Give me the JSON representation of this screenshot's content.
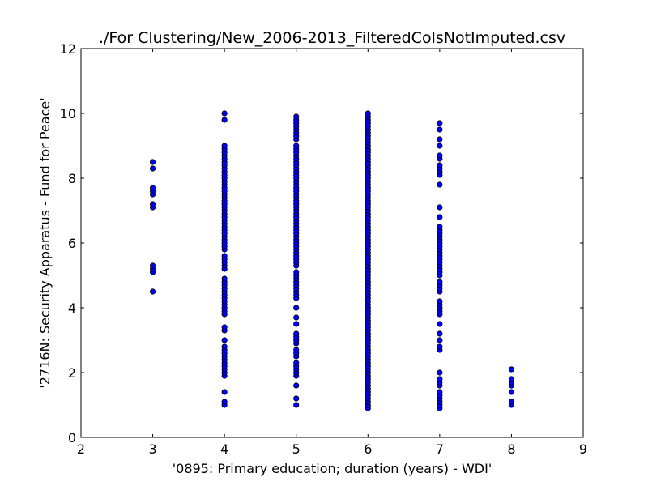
{
  "chart_data": {
    "type": "scatter",
    "title": "./For Clustering/New_2006-2013_FilteredColsNotImputed.csv",
    "xlabel": "'0895: Primary education; duration  (years) - WDI'",
    "ylabel": "'2716N: Security Apparatus - Fund for Peace'",
    "xlim": [
      2,
      9
    ],
    "ylim": [
      0,
      12
    ],
    "xticks": [
      "2",
      "3",
      "4",
      "5",
      "6",
      "7",
      "8",
      "9"
    ],
    "yticks": [
      "0",
      "2",
      "4",
      "6",
      "8",
      "10",
      "12"
    ],
    "marker_color": "#0000ff",
    "marker_edge_color": "#000000",
    "grid": false,
    "series": [
      {
        "name": "x=3",
        "x": 3,
        "y": [
          4.5,
          5.1,
          5.2,
          5.3,
          7.1,
          7.2,
          7.5,
          7.6,
          7.7,
          8.3,
          8.5
        ]
      },
      {
        "name": "x=4",
        "x": 4,
        "y": [
          1.0,
          1.1,
          1.4,
          1.9,
          2.0,
          2.1,
          2.2,
          2.3,
          2.4,
          2.5,
          2.6,
          2.7,
          2.8,
          3.0,
          3.3,
          3.4,
          3.8,
          3.9,
          4.0,
          4.1,
          4.2,
          4.3,
          4.4,
          4.5,
          4.6,
          4.7,
          4.8,
          4.9,
          5.2,
          5.3,
          5.4,
          5.5,
          5.6,
          5.8,
          5.9,
          6.0,
          6.1,
          6.2,
          6.3,
          6.4,
          6.5,
          6.6,
          6.7,
          6.8,
          6.9,
          7.0,
          7.1,
          7.2,
          7.3,
          7.4,
          7.5,
          7.6,
          7.7,
          7.8,
          7.9,
          8.0,
          8.1,
          8.2,
          8.3,
          8.4,
          8.5,
          8.6,
          8.7,
          8.8,
          8.9,
          9.0,
          9.8,
          10.0
        ]
      },
      {
        "name": "x=5",
        "x": 5,
        "y": [
          1.0,
          1.2,
          1.6,
          1.9,
          2.0,
          2.1,
          2.2,
          2.3,
          2.5,
          2.6,
          2.7,
          2.9,
          3.0,
          3.1,
          3.2,
          3.5,
          3.7,
          4.0,
          4.3,
          4.4,
          4.5,
          4.6,
          4.7,
          4.8,
          4.9,
          5.0,
          5.1,
          5.3,
          5.4,
          5.5,
          5.6,
          5.7,
          5.8,
          5.9,
          6.0,
          6.1,
          6.2,
          6.3,
          6.4,
          6.5,
          6.6,
          6.7,
          6.8,
          6.9,
          7.0,
          7.1,
          7.2,
          7.3,
          7.4,
          7.5,
          7.6,
          7.7,
          7.8,
          7.9,
          8.0,
          8.1,
          8.2,
          8.3,
          8.4,
          8.5,
          8.6,
          8.7,
          8.8,
          8.9,
          9.0,
          9.2,
          9.3,
          9.4,
          9.5,
          9.6,
          9.7,
          9.8,
          9.9
        ]
      },
      {
        "name": "x=6",
        "x": 6,
        "y": [
          0.9,
          1.0,
          1.1,
          1.2,
          1.3,
          1.4,
          1.5,
          1.6,
          1.7,
          1.8,
          1.9,
          2.0,
          2.1,
          2.2,
          2.3,
          2.4,
          2.5,
          2.6,
          2.7,
          2.8,
          2.9,
          3.0,
          3.1,
          3.2,
          3.3,
          3.4,
          3.5,
          3.6,
          3.7,
          3.8,
          3.9,
          4.0,
          4.1,
          4.2,
          4.3,
          4.4,
          4.5,
          4.6,
          4.7,
          4.8,
          4.9,
          5.0,
          5.1,
          5.2,
          5.3,
          5.4,
          5.5,
          5.6,
          5.7,
          5.8,
          5.9,
          6.0,
          6.1,
          6.2,
          6.3,
          6.4,
          6.5,
          6.6,
          6.7,
          6.8,
          6.9,
          7.0,
          7.1,
          7.2,
          7.3,
          7.4,
          7.5,
          7.6,
          7.7,
          7.8,
          7.9,
          8.0,
          8.1,
          8.2,
          8.3,
          8.4,
          8.5,
          8.6,
          8.7,
          8.8,
          8.9,
          9.0,
          9.1,
          9.2,
          9.3,
          9.4,
          9.5,
          9.6,
          9.7,
          9.8,
          9.9,
          10.0
        ]
      },
      {
        "name": "x=7",
        "x": 7,
        "y": [
          0.9,
          1.0,
          1.1,
          1.2,
          1.3,
          1.4,
          1.6,
          1.7,
          1.8,
          2.0,
          2.7,
          2.8,
          3.0,
          3.2,
          3.5,
          3.8,
          3.9,
          4.0,
          4.1,
          4.2,
          4.5,
          4.6,
          4.7,
          4.8,
          5.0,
          5.1,
          5.2,
          5.3,
          5.4,
          5.5,
          5.6,
          5.7,
          5.8,
          5.9,
          6.0,
          6.1,
          6.2,
          6.3,
          6.4,
          6.5,
          6.8,
          7.1,
          7.8,
          8.1,
          8.2,
          8.3,
          8.4,
          8.6,
          8.7,
          9.0,
          9.2,
          9.5,
          9.7
        ]
      },
      {
        "name": "x=8",
        "x": 8,
        "y": [
          1.0,
          1.1,
          1.4,
          1.6,
          1.7,
          1.8,
          2.1
        ]
      }
    ]
  }
}
